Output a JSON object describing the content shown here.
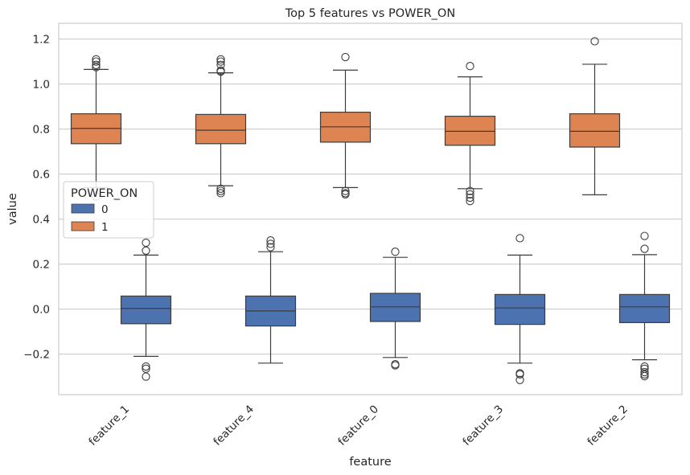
{
  "chart_data": {
    "type": "box",
    "title": "Top 5 features vs POWER_ON",
    "xlabel": "feature",
    "ylabel": "value",
    "categories": [
      "feature_1",
      "feature_4",
      "feature_0",
      "feature_3",
      "feature_2"
    ],
    "ylim": [
      -0.38,
      1.27
    ],
    "yticks": [
      -0.2,
      0.0,
      0.2,
      0.4,
      0.6,
      0.8,
      1.0,
      1.2
    ],
    "ytick_labels": [
      "−0.2",
      "0.0",
      "0.2",
      "0.4",
      "0.6",
      "0.8",
      "1.0",
      "1.2"
    ],
    "grid": true,
    "legend": {
      "title": "POWER_ON",
      "placement": "center-left"
    },
    "series": [
      {
        "name": "0",
        "color": "#4c72b0",
        "boxes": [
          {
            "q1": -0.065,
            "median": 0.003,
            "q3": 0.058,
            "whisker_low": -0.21,
            "whisker_high": 0.24,
            "outliers": [
              0.26,
              0.295,
              -0.255,
              -0.265,
              -0.3
            ]
          },
          {
            "q1": -0.075,
            "median": -0.008,
            "q3": 0.058,
            "whisker_low": -0.24,
            "whisker_high": 0.255,
            "outliers": [
              0.275,
              0.29,
              0.305
            ]
          },
          {
            "q1": -0.055,
            "median": 0.01,
            "q3": 0.07,
            "whisker_low": -0.215,
            "whisker_high": 0.23,
            "outliers": [
              0.255,
              -0.245,
              -0.25
            ]
          },
          {
            "q1": -0.068,
            "median": 0.005,
            "q3": 0.065,
            "whisker_low": -0.24,
            "whisker_high": 0.24,
            "outliers": [
              0.315,
              -0.285,
              -0.29,
              -0.315
            ]
          },
          {
            "q1": -0.06,
            "median": 0.01,
            "q3": 0.065,
            "whisker_low": -0.225,
            "whisker_high": 0.242,
            "outliers": [
              0.268,
              0.325,
              -0.255,
              -0.265,
              -0.28,
              -0.29,
              -0.298
            ]
          }
        ]
      },
      {
        "name": "1",
        "color": "#dd8452",
        "boxes": [
          {
            "q1": 0.735,
            "median": 0.803,
            "q3": 0.868,
            "whisker_low": 0.54,
            "whisker_high": 1.065,
            "outliers": [
              1.075,
              1.085,
              1.1,
              1.11,
              0.5
            ]
          },
          {
            "q1": 0.735,
            "median": 0.795,
            "q3": 0.865,
            "whisker_low": 0.548,
            "whisker_high": 1.05,
            "outliers": [
              1.055,
              1.06,
              1.085,
              1.1,
              1.11,
              0.535,
              0.525,
              0.515
            ]
          },
          {
            "q1": 0.742,
            "median": 0.81,
            "q3": 0.875,
            "whisker_low": 0.54,
            "whisker_high": 1.062,
            "outliers": [
              1.12,
              0.525,
              0.515,
              0.51
            ]
          },
          {
            "q1": 0.728,
            "median": 0.79,
            "q3": 0.857,
            "whisker_low": 0.535,
            "whisker_high": 1.032,
            "outliers": [
              1.08,
              0.525,
              0.51,
              0.495,
              0.48
            ]
          },
          {
            "q1": 0.72,
            "median": 0.79,
            "q3": 0.868,
            "whisker_low": 0.508,
            "whisker_high": 1.088,
            "outliers": [
              1.19
            ]
          }
        ]
      }
    ]
  }
}
